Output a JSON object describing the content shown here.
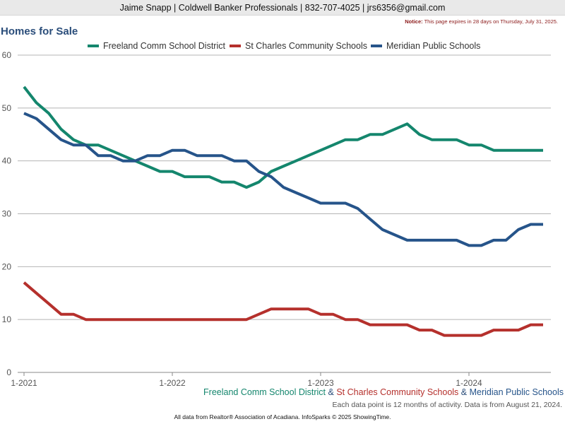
{
  "header": {
    "contact": "Jaime Snapp | Coldwell Banker Professionals | 832-707-4025 | jrs6356@gmail.com",
    "notice_label": "Notice:",
    "notice_text": "This page expires in 28 days on Thursday, July 31, 2025."
  },
  "colors": {
    "freeland": "#14866d",
    "stcharles": "#b5302c",
    "meridian": "#26548a",
    "title": "#2a4d7a"
  },
  "chart_data": {
    "type": "line",
    "title": "Homes for Sale",
    "ylim": [
      0,
      60
    ],
    "yticks": [
      0,
      10,
      20,
      30,
      40,
      50,
      60
    ],
    "xticks": [
      "1-2021",
      "1-2022",
      "1-2023",
      "1-2024"
    ],
    "x_start": "1-2021",
    "x_end": "7-2024",
    "grid": true,
    "legend_position": "top",
    "series": [
      {
        "name": "Freeland Comm School District",
        "color": "#14866d",
        "values": [
          54,
          51,
          49,
          46,
          44,
          43,
          43,
          42,
          41,
          40,
          39,
          38,
          38,
          37,
          37,
          37,
          36,
          36,
          35,
          36,
          38,
          39,
          40,
          41,
          42,
          43,
          44,
          44,
          45,
          45,
          46,
          47,
          45,
          44,
          44,
          44,
          43,
          43,
          42,
          42,
          42,
          42,
          42
        ]
      },
      {
        "name": "St Charles Community Schools",
        "color": "#b5302c",
        "values": [
          17,
          15,
          13,
          11,
          11,
          10,
          10,
          10,
          10,
          10,
          10,
          10,
          10,
          10,
          10,
          10,
          10,
          10,
          10,
          11,
          12,
          12,
          12,
          12,
          11,
          11,
          10,
          10,
          9,
          9,
          9,
          9,
          8,
          8,
          7,
          7,
          7,
          7,
          8,
          8,
          8,
          9,
          9
        ]
      },
      {
        "name": "Meridian Public Schools",
        "color": "#26548a",
        "values": [
          49,
          48,
          46,
          44,
          43,
          43,
          41,
          41,
          40,
          40,
          41,
          41,
          42,
          42,
          41,
          41,
          41,
          40,
          40,
          38,
          37,
          35,
          34,
          33,
          32,
          32,
          32,
          31,
          29,
          27,
          26,
          25,
          25,
          25,
          25,
          25,
          24,
          24,
          25,
          25,
          27,
          28,
          28
        ]
      }
    ]
  },
  "caption": {
    "freeland": "Freeland Comm School District",
    "amp1": " & ",
    "stcharles": "St Charles Community Schools",
    "amp2": " & ",
    "meridian": "Meridian Public Schools"
  },
  "footer": {
    "data_note": "Each data point is 12 months of activity. Data is from August 21, 2024.",
    "credit": "All data from Realtor® Association of Acadiana. InfoSparks © 2025 ShowingTime."
  }
}
